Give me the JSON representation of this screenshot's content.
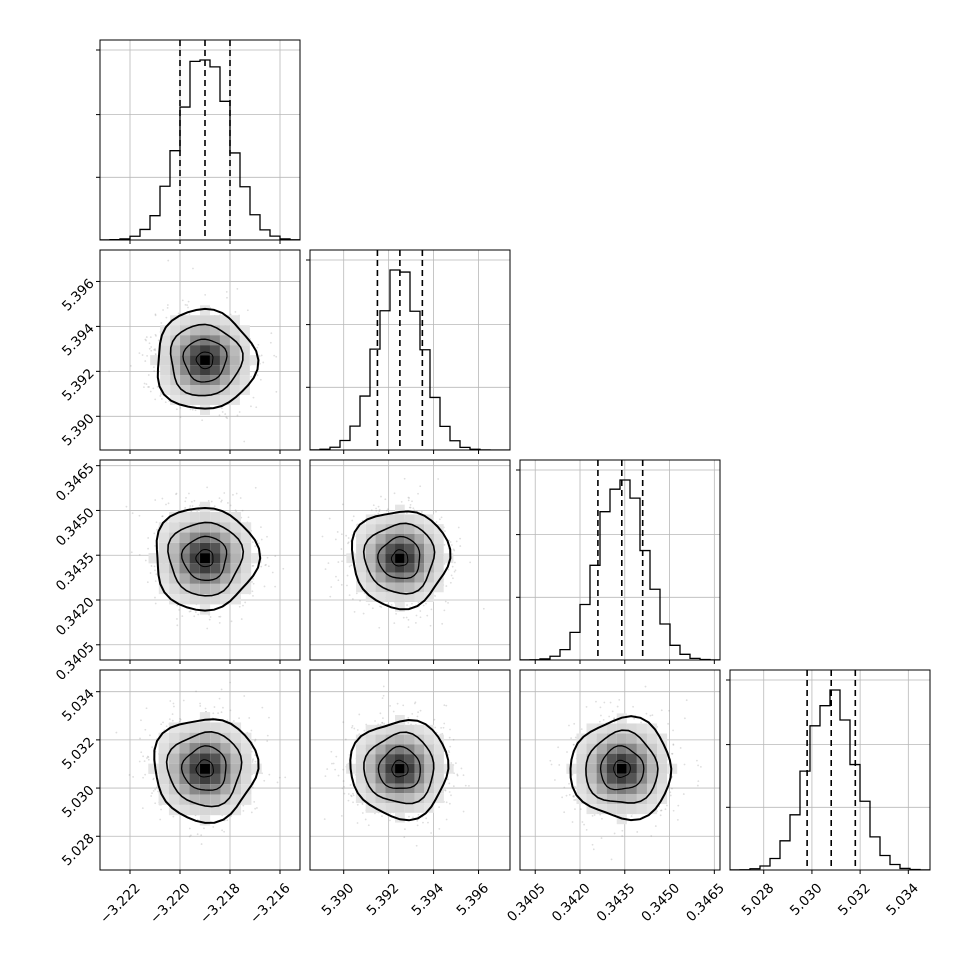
{
  "chart_data": {
    "type": "corner",
    "grid": true,
    "parameters": [
      {
        "ticks": [
          -3.222,
          -3.22,
          -3.218,
          -3.216
        ],
        "tick_labels": [
          "−3.222",
          "−3.220",
          "−3.218",
          "−3.216"
        ],
        "range": [
          -3.2232,
          -3.2152
        ],
        "mean": -3.219,
        "sigma": 0.001,
        "quantiles": [
          -3.22,
          -3.219,
          -3.218
        ]
      },
      {
        "ticks": [
          5.39,
          5.392,
          5.394,
          5.396
        ],
        "tick_labels": [
          "5.390",
          "5.392",
          "5.394",
          "5.396"
        ],
        "range": [
          5.3885,
          5.3974
        ],
        "mean": 5.3925,
        "sigma": 0.001,
        "quantiles": [
          5.3915,
          5.3925,
          5.3935
        ]
      },
      {
        "ticks": [
          0.3405,
          0.342,
          0.3435,
          0.345,
          0.3465
        ],
        "tick_labels": [
          "0.3405",
          "0.3420",
          "0.3435",
          "0.3450",
          "0.3465"
        ],
        "range": [
          0.33999,
          0.34669
        ],
        "mean": 0.3434,
        "sigma": 0.0008,
        "quantiles": [
          0.3426,
          0.3434,
          0.3441
        ]
      },
      {
        "ticks": [
          5.028,
          5.03,
          5.032,
          5.034
        ],
        "tick_labels": [
          "5.028",
          "5.030",
          "5.032",
          "5.034"
        ],
        "range": [
          5.0266,
          5.0349
        ],
        "mean": 5.0308,
        "sigma": 0.001,
        "quantiles": [
          5.0298,
          5.0308,
          5.0318
        ]
      }
    ]
  }
}
